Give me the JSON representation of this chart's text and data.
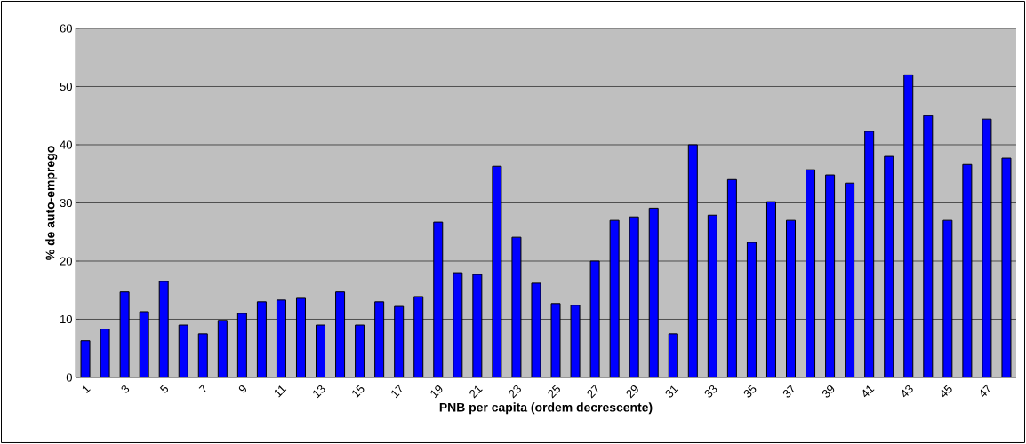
{
  "chart_data": {
    "type": "bar",
    "xlabel": "PNB per capita (ordem decrescente)",
    "ylabel": "% de auto-emprego",
    "categories": [
      "1",
      null,
      "3",
      null,
      "5",
      null,
      "7",
      null,
      "9",
      null,
      "11",
      null,
      "13",
      null,
      "15",
      null,
      "17",
      null,
      "19",
      null,
      "21",
      null,
      "23",
      null,
      "25",
      null,
      "27",
      null,
      "29",
      null,
      "31",
      null,
      "33",
      null,
      "35",
      null,
      "37",
      null,
      "39",
      null,
      "41",
      null,
      "43",
      null,
      "45",
      null,
      "47",
      null
    ],
    "values": [
      6.3,
      8.3,
      14.7,
      11.3,
      16.5,
      9,
      7.5,
      9.8,
      11,
      13,
      13.3,
      13.6,
      9,
      14.7,
      9,
      13,
      12.2,
      13.9,
      26.7,
      18,
      17.7,
      36.3,
      24.1,
      16.2,
      12.7,
      12.4,
      20,
      27,
      27.6,
      29.1,
      7.5,
      40,
      27.9,
      34,
      23.2,
      30.2,
      27,
      35.7,
      34.8,
      33.4,
      42.3,
      38,
      52,
      45,
      27,
      36.6,
      44.4,
      37.7
    ],
    "color": "#0000ff",
    "ylim": [
      0,
      60
    ],
    "yticks": [
      0,
      10,
      20,
      30,
      40,
      50,
      60
    ],
    "grid": "y"
  }
}
